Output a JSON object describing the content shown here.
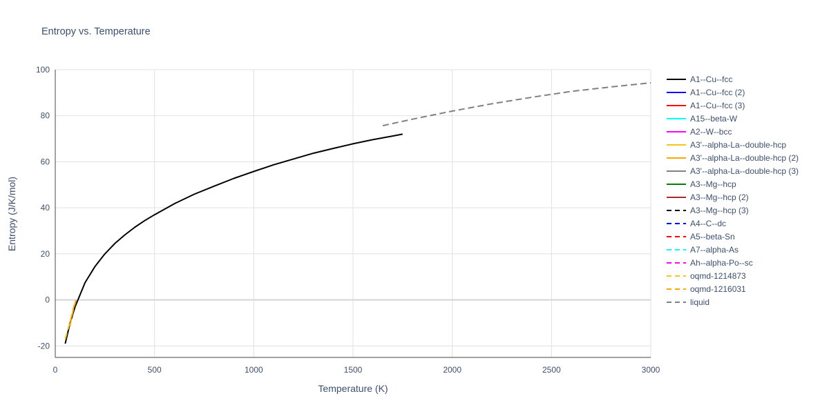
{
  "chart_data": {
    "type": "line",
    "title": "Entropy vs. Temperature",
    "xlabel": "Temperature (K)",
    "ylabel": "Entropy (J/K/mol)",
    "xlim": [
      0,
      3000
    ],
    "ylim": [
      -25,
      100
    ],
    "x_ticks": [
      0,
      500,
      1000,
      1500,
      2000,
      2500,
      3000
    ],
    "y_ticks": [
      -20,
      0,
      20,
      40,
      60,
      80,
      100
    ],
    "grid": true,
    "legend_position": "right",
    "series": [
      {
        "name": "A1--Cu--fcc",
        "color": "#000000",
        "dash": "solid",
        "x": [
          50,
          75,
          100,
          150,
          200,
          250,
          300,
          350,
          400,
          450,
          500,
          600,
          700,
          800,
          900,
          1000,
          1100,
          1200,
          1300,
          1400,
          1500,
          1600,
          1700,
          1750
        ],
        "y": [
          -19,
          -10,
          -3,
          7.5,
          14.5,
          20,
          24.5,
          28.2,
          31.5,
          34.4,
          37,
          41.8,
          45.9,
          49.4,
          52.8,
          55.8,
          58.7,
          61.2,
          63.7,
          65.8,
          67.8,
          69.6,
          71.2,
          72.0
        ]
      },
      {
        "name": "A1--Cu--fcc (2)",
        "color": "#0000ff",
        "dash": "solid",
        "x": [],
        "y": []
      },
      {
        "name": "A1--Cu--fcc (3)",
        "color": "#ff0000",
        "dash": "solid",
        "x": [],
        "y": []
      },
      {
        "name": "A15--beta-W",
        "color": "#00ffff",
        "dash": "solid",
        "x": [],
        "y": []
      },
      {
        "name": "A2--W--bcc",
        "color": "#ff00ff",
        "dash": "solid",
        "x": [],
        "y": []
      },
      {
        "name": "A3'--alpha-La--double-hcp",
        "color": "#f5c518",
        "dash": "solid",
        "x": [],
        "y": []
      },
      {
        "name": "A3'--alpha-La--double-hcp (2)",
        "color": "#ffa500",
        "dash": "solid",
        "x": [],
        "y": []
      },
      {
        "name": "A3'--alpha-La--double-hcp (3)",
        "color": "#808080",
        "dash": "solid",
        "x": [],
        "y": []
      },
      {
        "name": "A3--Mg--hcp",
        "color": "#008000",
        "dash": "solid",
        "x": [],
        "y": []
      },
      {
        "name": "A3--Mg--hcp (2)",
        "color": "#a52a2a",
        "dash": "solid",
        "x": [],
        "y": []
      },
      {
        "name": "A3--Mg--hcp (3)",
        "color": "#000000",
        "dash": "dash",
        "x": [],
        "y": []
      },
      {
        "name": "A4--C--dc",
        "color": "#0000ff",
        "dash": "dash",
        "x": [],
        "y": []
      },
      {
        "name": "A5--beta-Sn",
        "color": "#ff0000",
        "dash": "dash",
        "x": [],
        "y": []
      },
      {
        "name": "A7--alpha-As",
        "color": "#00ffff",
        "dash": "dash",
        "x": [],
        "y": []
      },
      {
        "name": "Ah--alpha-Po--sc",
        "color": "#ff00ff",
        "dash": "dash",
        "x": [],
        "y": []
      },
      {
        "name": "oqmd-1214873",
        "color": "#f5c518",
        "dash": "dash",
        "x": [
          50,
          60,
          70,
          80,
          90,
          100
        ],
        "y": [
          -17,
          -14,
          -11,
          -7.5,
          -4,
          -0.5
        ]
      },
      {
        "name": "oqmd-1216031",
        "color": "#ffa500",
        "dash": "dash",
        "x": [
          75,
          85,
          95,
          105
        ],
        "y": [
          -11,
          -6.5,
          -3,
          0
        ]
      },
      {
        "name": "liquid",
        "color": "#808080",
        "dash": "dash",
        "x": [
          1650,
          1800,
          2000,
          2200,
          2400,
          2600,
          2800,
          3000
        ],
        "y": [
          75.7,
          78.5,
          82.0,
          85.2,
          88.0,
          90.6,
          92.5,
          94.3
        ]
      }
    ]
  }
}
